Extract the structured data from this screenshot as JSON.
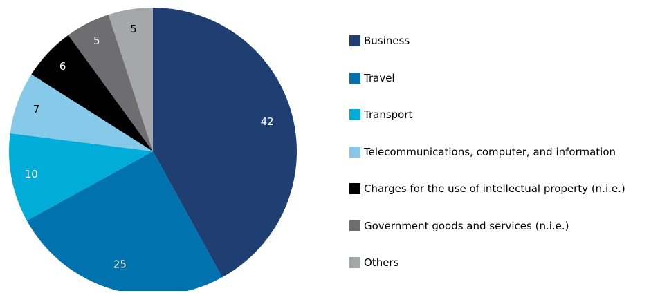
{
  "chart_data": {
    "type": "pie",
    "title": "",
    "legend_position": "right",
    "slices": [
      {
        "label": "Business",
        "value": 42,
        "color": "#1F3F73"
      },
      {
        "label": "Travel",
        "value": 25,
        "color": "#0072AE"
      },
      {
        "label": "Transport",
        "value": 10,
        "color": "#00ADD8"
      },
      {
        "label": "Telecommunications, computer, and information",
        "value": 7,
        "color": "#87C9E8"
      },
      {
        "label": "Charges for the use of intellectual property (n.i.e.)",
        "value": 6,
        "color": "#000000"
      },
      {
        "label": "Government goods and services (n.i.e.)",
        "value": 5,
        "color": "#6E6E70"
      },
      {
        "label": "Others",
        "value": 5,
        "color": "#A6A7AA"
      }
    ]
  }
}
